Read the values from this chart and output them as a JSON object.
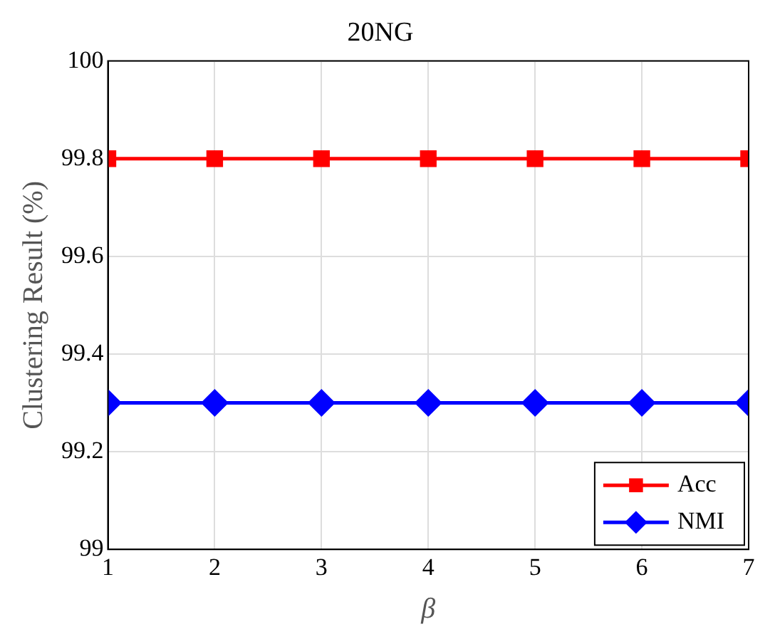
{
  "chart_data": {
    "type": "line",
    "title": "20NG",
    "xlabel": "β",
    "ylabel": "Clustering Result (%)",
    "x": [
      1,
      2,
      3,
      4,
      5,
      6,
      7
    ],
    "series": [
      {
        "name": "Acc",
        "color": "#ff0000",
        "marker": "square",
        "values": [
          99.8,
          99.8,
          99.8,
          99.8,
          99.8,
          99.8,
          99.8
        ]
      },
      {
        "name": "NMI",
        "color": "#0000ff",
        "marker": "diamond",
        "values": [
          99.3,
          99.3,
          99.3,
          99.3,
          99.3,
          99.3,
          99.3
        ]
      }
    ],
    "xlim": [
      1,
      7
    ],
    "xticks": [
      1,
      2,
      3,
      4,
      5,
      6,
      7
    ],
    "ylim": [
      99,
      100
    ],
    "yticks": [
      99,
      99.2,
      99.4,
      99.6,
      99.8,
      100
    ],
    "grid": true,
    "legend": "bottom right",
    "line_style": "solid"
  }
}
